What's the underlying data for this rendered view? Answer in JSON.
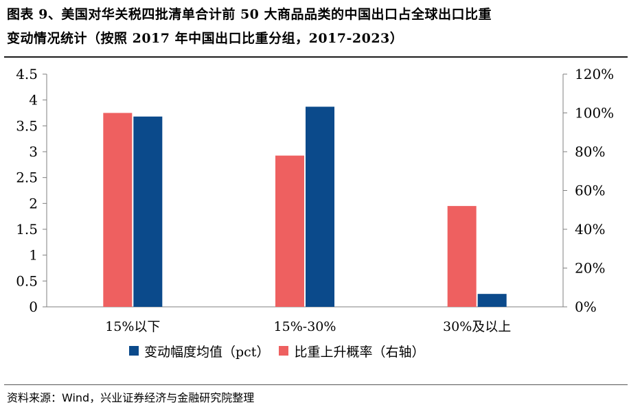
{
  "header": {
    "title_line1": "图表 9、美国对华关税四批清单合计前 50 大商品品类的中国出口占全球出口比重",
    "title_line2": "变动情况统计（按照 2017 年中国出口比重分组，2017-2023）"
  },
  "footer": {
    "source": "资料来源：Wind，兴业证券经济与金融研究院整理"
  },
  "colors": {
    "blue": "#0b4a8b",
    "red": "#ee6060"
  },
  "chart_data": {
    "type": "bar",
    "categories": [
      "15%以下",
      "15%-30%",
      "30%及以上"
    ],
    "series": [
      {
        "name": "变动幅度均值（pct）",
        "axis": "left",
        "values": [
          3.68,
          3.87,
          0.25
        ]
      },
      {
        "name": "比重上升概率（右轴）",
        "axis": "right",
        "values": [
          100,
          78,
          52
        ]
      }
    ],
    "y_left": {
      "min": 0,
      "max": 4.5,
      "ticks": [
        "0",
        "0.5",
        "1",
        "1.5",
        "2",
        "2.5",
        "3",
        "3.5",
        "4",
        "4.5"
      ]
    },
    "y_right": {
      "min": 0,
      "max": 120,
      "unit": "%",
      "ticks": [
        "0%",
        "20%",
        "40%",
        "60%",
        "80%",
        "100%",
        "120%"
      ]
    },
    "grid": false,
    "legend": "bottom"
  }
}
